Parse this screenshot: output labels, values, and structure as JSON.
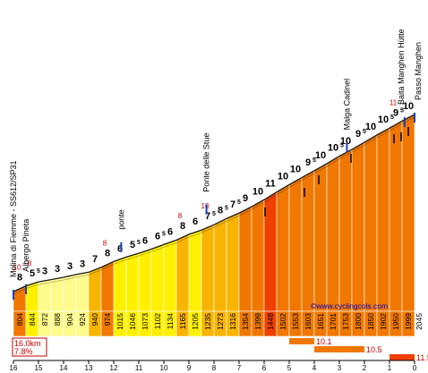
{
  "chart_data": {
    "type": "area",
    "source": "©www.cyclingcols.com",
    "summary": {
      "distance": "16.0km",
      "gradient": "7.8%"
    },
    "x_ticks_km_to_go": [
      16,
      15,
      14,
      13,
      12,
      11,
      10,
      9,
      8,
      7,
      6,
      5,
      4,
      3,
      2,
      1,
      0
    ],
    "segments": [
      {
        "alt": "804",
        "grad": "8",
        "color": "#f07800",
        "max": "10"
      },
      {
        "alt": "844",
        "grad": "5",
        "sup": "5",
        "color": "#fff000",
        "max": "8"
      },
      {
        "alt": "872",
        "grad": "3",
        "color": "#fffa8c"
      },
      {
        "alt": "888",
        "grad": "3",
        "color": "#fffa8c"
      },
      {
        "alt": "904",
        "grad": "3",
        "color": "#fffa8c"
      },
      {
        "alt": "924",
        "grad": "3",
        "color": "#fffa8c"
      },
      {
        "alt": "940",
        "grad": "7",
        "color": "#f8b400"
      },
      {
        "alt": "974",
        "grad": "8",
        "color": "#f07800",
        "max": "8"
      },
      {
        "alt": "1015",
        "grad": "6",
        "color": "#fff000"
      },
      {
        "alt": "1046",
        "grad": "5",
        "sup": "5",
        "color": "#fff000"
      },
      {
        "alt": "1073",
        "grad": "6",
        "color": "#fff000"
      },
      {
        "alt": "1102",
        "grad": "6",
        "sup": "5",
        "color": "#fff000"
      },
      {
        "alt": "1134",
        "grad": "6",
        "color": "#fff000"
      },
      {
        "alt": "1165",
        "grad": "8",
        "color": "#f8b400",
        "max": "8"
      },
      {
        "alt": "1205",
        "grad": "6",
        "color": "#fff000"
      },
      {
        "alt": "1235",
        "grad": "7",
        "sup": "5",
        "color": "#f8b400",
        "max": "10"
      },
      {
        "alt": "1273",
        "grad": "8",
        "sup": "5",
        "color": "#f8b400"
      },
      {
        "alt": "1316",
        "grad": "7",
        "sup": "5",
        "color": "#f8b400"
      },
      {
        "alt": "1354",
        "grad": "9",
        "color": "#f07800"
      },
      {
        "alt": "1399",
        "grad": "10",
        "color": "#f07800"
      },
      {
        "alt": "1448",
        "grad": "11",
        "color": "#f04000"
      },
      {
        "alt": "1502",
        "grad": "10",
        "color": "#f07800"
      },
      {
        "alt": "1553",
        "grad": "10",
        "color": "#f07800"
      },
      {
        "alt": "1603",
        "grad": "9",
        "sup": "5",
        "color": "#f07800"
      },
      {
        "alt": "1651",
        "grad": "10",
        "color": "#f07800"
      },
      {
        "alt": "1701",
        "grad": "10",
        "sup": "5",
        "color": "#f07800"
      },
      {
        "alt": "1753",
        "grad": "10",
        "color": "#f07800"
      },
      {
        "alt": "1800",
        "grad": "9",
        "sup": "5",
        "color": "#f07800"
      },
      {
        "alt": "1850",
        "grad": "10",
        "color": "#f07800"
      },
      {
        "alt": "1902",
        "grad": "10",
        "sup": "5",
        "color": "#f07800"
      },
      {
        "alt": "1950",
        "grad": "9",
        "sup": "5",
        "color": "#f07800",
        "max": "11"
      },
      {
        "alt": "1999",
        "grad": "10",
        "color": "#f07800"
      },
      {
        "alt": "2045",
        "grad": "9",
        "color": "#f07800"
      }
    ],
    "places": [
      {
        "name": "Molina di Fiemme - SS612/SP31",
        "km": 0
      },
      {
        "name": "Albergo Pineta",
        "km": 0.5
      },
      {
        "name": "ponte",
        "km": 4.3
      },
      {
        "name": "Ponte delle Stue",
        "km": 7.7
      },
      {
        "name": "Malga Cadinel",
        "km": 13.3
      },
      {
        "name": "Baita Manghen Hütte",
        "km": 15.6
      },
      {
        "name": "Passo Manghen",
        "km": 16.0
      }
    ],
    "steepest_bars": [
      {
        "label": "10.1",
        "from_km": 4,
        "to_km": 5
      },
      {
        "label": "10.5",
        "from_km": 2,
        "to_km": 4
      },
      {
        "label": "11.5",
        "from_km": 0,
        "to_km": 1
      }
    ]
  }
}
